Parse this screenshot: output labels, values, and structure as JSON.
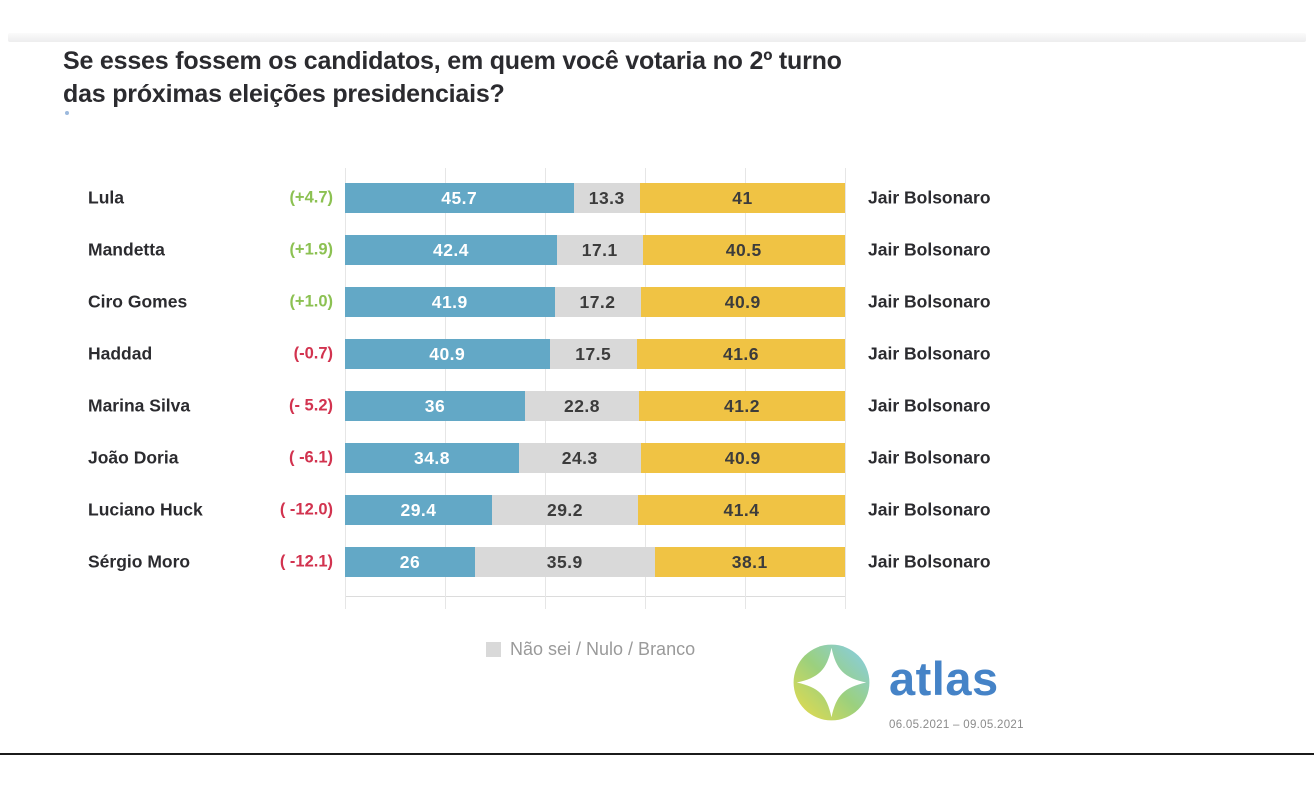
{
  "title": {
    "line1": "Se esses fossem os candidatos, em quem você votaria no 2º turno",
    "line2": "das próximas eleições presidenciais?"
  },
  "chart_data": {
    "type": "bar",
    "subtype": "horizontal-stacked-100pct",
    "title": "Se esses fossem os candidatos, em quem você votaria no 2º turno das próximas eleições presidenciais?",
    "unit": "%",
    "xlim": [
      0,
      100
    ],
    "gridlines_every_pct": 20,
    "grid": "vertical-light-gray",
    "legend": {
      "label": "Não sei / Nulo / Branco",
      "position": "bottom-center"
    },
    "series_order": [
      "candidate",
      "undecided",
      "bolsonaro"
    ],
    "colors": {
      "candidate": "#63a8c6",
      "undecided": "#d9d9d9",
      "bolsonaro": "#f0c344",
      "delta_positive": "#8cc152",
      "delta_negative": "#d2334f",
      "bar_text_light": "#ffffff",
      "bar_text_dark": "#3c3c3c"
    },
    "rows": [
      {
        "candidate": "Lula",
        "delta": "(+4.7)",
        "delta_positive": true,
        "candidate_pct": 45.7,
        "candidate_label": "45.7",
        "undecided_pct": 13.3,
        "undecided_label": "13.3",
        "bolsonaro_pct": 41,
        "bolsonaro_label": "41",
        "opponent": "Jair Bolsonaro"
      },
      {
        "candidate": "Mandetta",
        "delta": "(+1.9)",
        "delta_positive": true,
        "candidate_pct": 42.4,
        "candidate_label": "42.4",
        "undecided_pct": 17.1,
        "undecided_label": "17.1",
        "bolsonaro_pct": 40.5,
        "bolsonaro_label": "40.5",
        "opponent": "Jair Bolsonaro"
      },
      {
        "candidate": "Ciro Gomes",
        "delta": "(+1.0)",
        "delta_positive": true,
        "candidate_pct": 41.9,
        "candidate_label": "41.9",
        "undecided_pct": 17.2,
        "undecided_label": "17.2",
        "bolsonaro_pct": 40.9,
        "bolsonaro_label": "40.9",
        "opponent": "Jair Bolsonaro"
      },
      {
        "candidate": "Haddad",
        "delta": "(-0.7)",
        "delta_positive": false,
        "candidate_pct": 40.9,
        "candidate_label": "40.9",
        "undecided_pct": 17.5,
        "undecided_label": "17.5",
        "bolsonaro_pct": 41.6,
        "bolsonaro_label": "41.6",
        "opponent": "Jair Bolsonaro"
      },
      {
        "candidate": "Marina Silva",
        "delta": "(- 5.2)",
        "delta_positive": false,
        "candidate_pct": 36,
        "candidate_label": "36",
        "undecided_pct": 22.8,
        "undecided_label": "22.8",
        "bolsonaro_pct": 41.2,
        "bolsonaro_label": "41.2",
        "opponent": "Jair Bolsonaro"
      },
      {
        "candidate": "João Doria",
        "delta": "( -6.1)",
        "delta_positive": false,
        "candidate_pct": 34.8,
        "candidate_label": "34.8",
        "undecided_pct": 24.3,
        "undecided_label": "24.3",
        "bolsonaro_pct": 40.9,
        "bolsonaro_label": "40.9",
        "opponent": "Jair Bolsonaro"
      },
      {
        "candidate": "Luciano Huck",
        "delta": "( -12.0)",
        "delta_positive": false,
        "candidate_pct": 29.4,
        "candidate_label": "29.4",
        "undecided_pct": 29.2,
        "undecided_label": "29.2",
        "bolsonaro_pct": 41.4,
        "bolsonaro_label": "41.4",
        "opponent": "Jair Bolsonaro"
      },
      {
        "candidate": "Sérgio Moro",
        "delta": "( -12.1)",
        "delta_positive": false,
        "candidate_pct": 26,
        "candidate_label": "26",
        "undecided_pct": 35.9,
        "undecided_label": "35.9",
        "bolsonaro_pct": 38.1,
        "bolsonaro_label": "38.1",
        "opponent": "Jair Bolsonaro"
      }
    ]
  },
  "legend": {
    "label": "Não sei / Nulo / Branco"
  },
  "footer": {
    "brand": "atlas",
    "dates": "06.05.2021 – 09.05.2021",
    "brand_color": "#4583c7"
  }
}
